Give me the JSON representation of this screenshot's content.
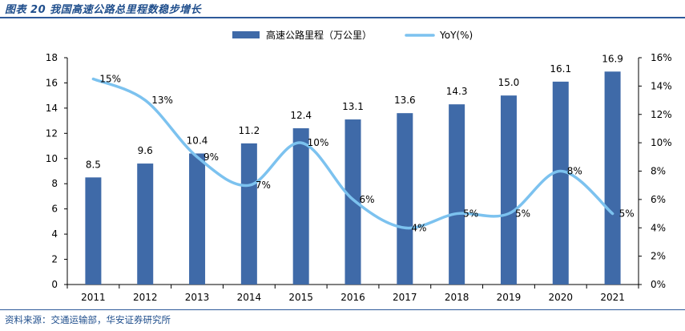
{
  "header": {
    "title": "图表 20 我国高速公路总里程数稳步增长"
  },
  "footer": {
    "source": "资料来源：交通运输部，华安证券研究所"
  },
  "colors": {
    "bar": "#3f6aa8",
    "line": "#7cc2ef",
    "title": "#1f4e8c"
  },
  "chart_data": {
    "type": "bar",
    "categories": [
      "2011",
      "2012",
      "2013",
      "2014",
      "2015",
      "2016",
      "2017",
      "2018",
      "2019",
      "2020",
      "2021"
    ],
    "series": [
      {
        "name": "高速公路里程（万公里）",
        "type": "bar",
        "axis": "left",
        "values": [
          8.5,
          9.6,
          10.4,
          11.2,
          12.4,
          13.1,
          13.6,
          14.3,
          15.0,
          16.1,
          16.9
        ],
        "labels": [
          "8.5",
          "9.6",
          "10.4",
          "11.2",
          "12.4",
          "13.1",
          "13.6",
          "14.3",
          "15.0",
          "16.1",
          "16.9"
        ]
      },
      {
        "name": "YoY(%)",
        "type": "line",
        "axis": "right",
        "values": [
          14.5,
          13,
          9,
          7,
          10,
          6,
          4,
          5,
          5,
          8,
          5
        ],
        "labels": [
          "15%",
          "13%",
          "9%",
          "7%",
          "10%",
          "6%",
          "4%",
          "5%",
          "5%",
          "8%",
          "5%"
        ]
      }
    ],
    "left_axis": {
      "min": 0,
      "max": 18,
      "ticks": [
        "0",
        "2",
        "4",
        "6",
        "8",
        "10",
        "12",
        "14",
        "16",
        "18"
      ]
    },
    "right_axis": {
      "min": 0,
      "max": 16,
      "ticks": [
        "0%",
        "2%",
        "4%",
        "6%",
        "8%",
        "10%",
        "12%",
        "14%",
        "16%"
      ]
    },
    "legend_position": "top-center",
    "grid": false
  }
}
